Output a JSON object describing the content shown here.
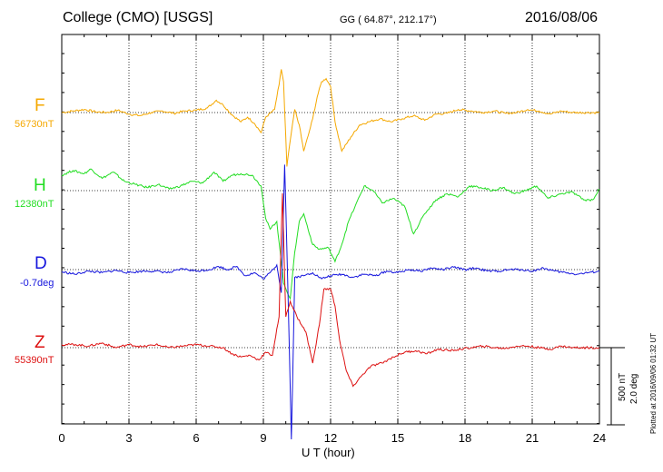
{
  "header": {
    "station": "College (CMO)  [USGS]",
    "coords": "GG ( 64.87°, 212.17°)",
    "date": "2016/08/06"
  },
  "footer": {
    "plotted": "Plotted at 2016/09/06 01:32 UT"
  },
  "scale": {
    "nt": "500 nT",
    "deg": "2.0 deg"
  },
  "chart_data": {
    "type": "line",
    "title": "College (CMO)  [USGS]",
    "xlabel": "U T (hour)",
    "ylabel": "",
    "xlim": [
      0,
      24
    ],
    "x_ticks": [
      "0",
      "3",
      "6",
      "9",
      "12",
      "15",
      "18",
      "21",
      "24"
    ],
    "grid": true,
    "series": [
      {
        "name": "F",
        "baseline": "56730nT",
        "color": "#f5a800",
        "points": [
          [
            0,
            0
          ],
          [
            0.5,
            10
          ],
          [
            1,
            20
          ],
          [
            1.5,
            5
          ],
          [
            2,
            0
          ],
          [
            2.5,
            15
          ],
          [
            3,
            -10
          ],
          [
            3.5,
            -20
          ],
          [
            4,
            0
          ],
          [
            4.5,
            10
          ],
          [
            5,
            -5
          ],
          [
            5.5,
            10
          ],
          [
            6,
            15
          ],
          [
            6.5,
            30
          ],
          [
            6.9,
            80
          ],
          [
            7.2,
            50
          ],
          [
            7.6,
            -15
          ],
          [
            8,
            -60
          ],
          [
            8.3,
            -30
          ],
          [
            8.6,
            -70
          ],
          [
            8.9,
            -130
          ],
          [
            9.1,
            -30
          ],
          [
            9.3,
            -5
          ],
          [
            9.5,
            20
          ],
          [
            9.7,
            180
          ],
          [
            9.8,
            280
          ],
          [
            9.9,
            200
          ],
          [
            10.05,
            -350
          ],
          [
            10.2,
            -180
          ],
          [
            10.4,
            20
          ],
          [
            10.6,
            -80
          ],
          [
            10.8,
            -250
          ],
          [
            11,
            -150
          ],
          [
            11.2,
            -40
          ],
          [
            11.4,
            100
          ],
          [
            11.6,
            200
          ],
          [
            11.8,
            220
          ],
          [
            12,
            170
          ],
          [
            12.2,
            -60
          ],
          [
            12.5,
            -250
          ],
          [
            12.9,
            -160
          ],
          [
            13.3,
            -80
          ],
          [
            13.7,
            -60
          ],
          [
            14.2,
            -40
          ],
          [
            14.7,
            -60
          ],
          [
            15.2,
            -40
          ],
          [
            15.7,
            -20
          ],
          [
            16.2,
            -50
          ],
          [
            16.7,
            -10
          ],
          [
            17.2,
            -5
          ],
          [
            17.7,
            20
          ],
          [
            18.3,
            10
          ],
          [
            18.8,
            0
          ],
          [
            19.3,
            10
          ],
          [
            19.8,
            -5
          ],
          [
            20.3,
            0
          ],
          [
            20.8,
            20
          ],
          [
            21.3,
            10
          ],
          [
            21.8,
            -10
          ],
          [
            22.3,
            10
          ],
          [
            22.8,
            0
          ],
          [
            23.4,
            0
          ],
          [
            24,
            0
          ]
        ]
      },
      {
        "name": "H",
        "baseline": "12380nT",
        "color": "#22dd22",
        "points": [
          [
            0,
            100
          ],
          [
            0.5,
            130
          ],
          [
            1,
            110
          ],
          [
            1.3,
            140
          ],
          [
            1.8,
            80
          ],
          [
            2.3,
            120
          ],
          [
            2.8,
            60
          ],
          [
            3.3,
            40
          ],
          [
            3.8,
            20
          ],
          [
            4.3,
            40
          ],
          [
            4.8,
            10
          ],
          [
            5.3,
            30
          ],
          [
            5.8,
            60
          ],
          [
            6.3,
            50
          ],
          [
            6.8,
            120
          ],
          [
            7.2,
            60
          ],
          [
            7.6,
            100
          ],
          [
            8,
            110
          ],
          [
            8.5,
            100
          ],
          [
            8.9,
            30
          ],
          [
            9.1,
            -180
          ],
          [
            9.3,
            -250
          ],
          [
            9.6,
            -200
          ],
          [
            9.9,
            -600
          ],
          [
            10.2,
            -700
          ],
          [
            10.4,
            -400
          ],
          [
            10.6,
            -200
          ],
          [
            10.8,
            -150
          ],
          [
            11.2,
            -350
          ],
          [
            11.5,
            -380
          ],
          [
            11.9,
            -370
          ],
          [
            12.2,
            -460
          ],
          [
            12.5,
            -350
          ],
          [
            12.8,
            -200
          ],
          [
            13.1,
            -100
          ],
          [
            13.5,
            30
          ],
          [
            13.9,
            0
          ],
          [
            14.3,
            -80
          ],
          [
            14.8,
            -50
          ],
          [
            15.3,
            -100
          ],
          [
            15.7,
            -280
          ],
          [
            16.2,
            -150
          ],
          [
            16.7,
            -60
          ],
          [
            17.2,
            -20
          ],
          [
            17.7,
            -40
          ],
          [
            18.2,
            30
          ],
          [
            18.7,
            20
          ],
          [
            19.2,
            0
          ],
          [
            19.7,
            20
          ],
          [
            20.2,
            -20
          ],
          [
            20.7,
            0
          ],
          [
            21.2,
            30
          ],
          [
            21.7,
            -50
          ],
          [
            22.3,
            -20
          ],
          [
            22.8,
            -10
          ],
          [
            23.3,
            -60
          ],
          [
            23.7,
            -60
          ],
          [
            24,
            10
          ]
        ]
      },
      {
        "name": "D",
        "baseline": "-0.7deg",
        "color": "#1515dd",
        "points": [
          [
            0,
            -15
          ],
          [
            0.6,
            -30
          ],
          [
            1.2,
            -10
          ],
          [
            1.8,
            -20
          ],
          [
            2.4,
            -5
          ],
          [
            3,
            -20
          ],
          [
            3.6,
            -10
          ],
          [
            4.2,
            -10
          ],
          [
            4.8,
            -20
          ],
          [
            5.4,
            5
          ],
          [
            6,
            -10
          ],
          [
            6.6,
            0
          ],
          [
            7,
            20
          ],
          [
            7.4,
            0
          ],
          [
            7.8,
            20
          ],
          [
            8.2,
            -40
          ],
          [
            8.6,
            -20
          ],
          [
            9,
            -60
          ],
          [
            9.3,
            -20
          ],
          [
            9.6,
            30
          ],
          [
            9.8,
            -150
          ],
          [
            9.95,
            680
          ],
          [
            10.1,
            -150
          ],
          [
            10.25,
            -1100
          ],
          [
            10.4,
            -50
          ],
          [
            10.8,
            -40
          ],
          [
            11.2,
            -20
          ],
          [
            11.6,
            -60
          ],
          [
            12,
            -40
          ],
          [
            12.5,
            -30
          ],
          [
            13,
            -50
          ],
          [
            13.5,
            -30
          ],
          [
            14,
            -40
          ],
          [
            14.5,
            -10
          ],
          [
            15,
            -20
          ],
          [
            15.5,
            0
          ],
          [
            16,
            -10
          ],
          [
            16.5,
            10
          ],
          [
            17,
            0
          ],
          [
            17.5,
            15
          ],
          [
            18,
            0
          ],
          [
            18.5,
            10
          ],
          [
            19,
            -10
          ],
          [
            19.5,
            -10
          ],
          [
            20,
            0
          ],
          [
            20.5,
            0
          ],
          [
            21,
            -10
          ],
          [
            21.5,
            10
          ],
          [
            22,
            -10
          ],
          [
            22.5,
            -20
          ],
          [
            23,
            -30
          ],
          [
            23.5,
            -20
          ],
          [
            24,
            -10
          ]
        ]
      },
      {
        "name": "Z",
        "baseline": "55390nT",
        "color": "#dd1111",
        "points": [
          [
            0,
            20
          ],
          [
            0.6,
            20
          ],
          [
            1.2,
            10
          ],
          [
            1.8,
            30
          ],
          [
            2.4,
            0
          ],
          [
            3,
            20
          ],
          [
            3.6,
            5
          ],
          [
            4.2,
            20
          ],
          [
            4.8,
            0
          ],
          [
            5.4,
            10
          ],
          [
            6,
            20
          ],
          [
            6.6,
            10
          ],
          [
            7.2,
            0
          ],
          [
            7.6,
            -40
          ],
          [
            8,
            -60
          ],
          [
            8.4,
            -50
          ],
          [
            8.8,
            -80
          ],
          [
            9.1,
            -30
          ],
          [
            9.4,
            -50
          ],
          [
            9.7,
            200
          ],
          [
            9.85,
            1000
          ],
          [
            10,
            200
          ],
          [
            10.2,
            300
          ],
          [
            10.5,
            200
          ],
          [
            10.9,
            100
          ],
          [
            11.2,
            -100
          ],
          [
            11.5,
            150
          ],
          [
            11.7,
            380
          ],
          [
            12,
            380
          ],
          [
            12.2,
            270
          ],
          [
            12.4,
            50
          ],
          [
            12.7,
            -150
          ],
          [
            13,
            -250
          ],
          [
            13.4,
            -180
          ],
          [
            13.8,
            -120
          ],
          [
            14.3,
            -100
          ],
          [
            14.8,
            -60
          ],
          [
            15.3,
            -30
          ],
          [
            15.8,
            -20
          ],
          [
            16.3,
            -40
          ],
          [
            16.8,
            -10
          ],
          [
            17.3,
            -20
          ],
          [
            17.8,
            -10
          ],
          [
            18.3,
            0
          ],
          [
            18.8,
            10
          ],
          [
            19.3,
            0
          ],
          [
            19.8,
            -5
          ],
          [
            20.3,
            10
          ],
          [
            20.8,
            10
          ],
          [
            21.3,
            0
          ],
          [
            21.8,
            -10
          ],
          [
            22.3,
            10
          ],
          [
            22.8,
            0
          ],
          [
            23.4,
            0
          ],
          [
            24,
            0
          ]
        ]
      }
    ]
  }
}
